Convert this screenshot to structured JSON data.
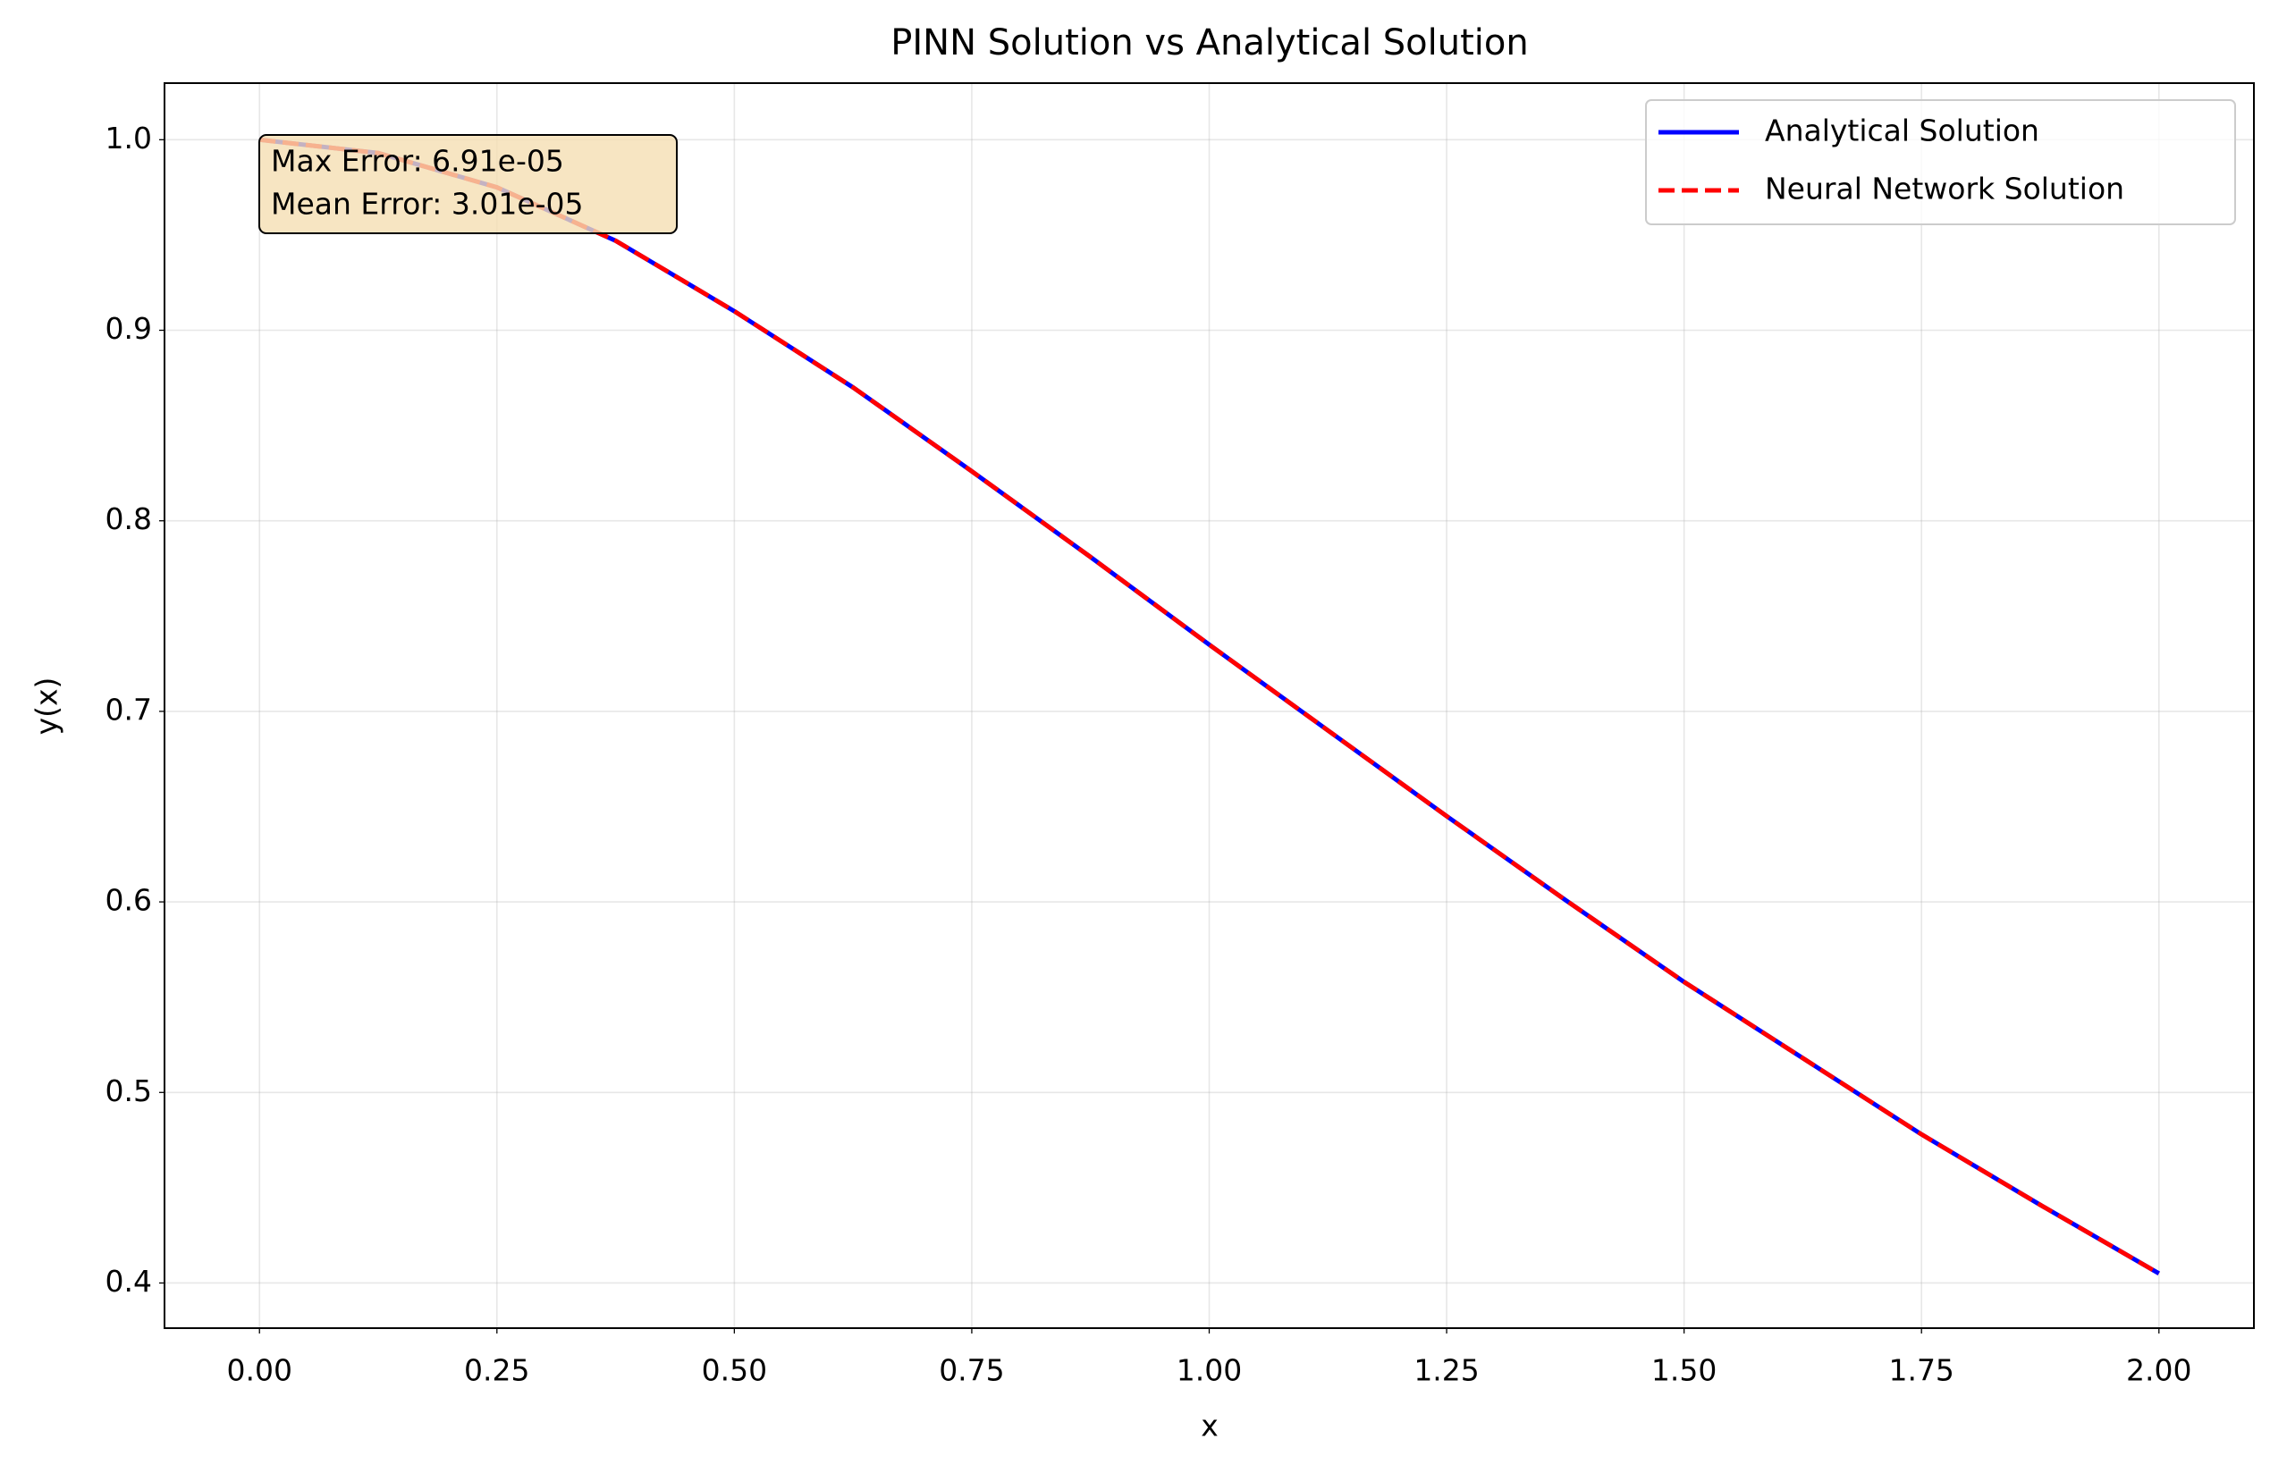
{
  "chart_data": {
    "type": "line",
    "title": "PINN Solution vs Analytical Solution",
    "x_label": "x",
    "y_label": "y(x)",
    "x": [
      0,
      0.125,
      0.25,
      0.375,
      0.5,
      0.625,
      0.75,
      0.875,
      1.0,
      1.125,
      1.25,
      1.375,
      1.5,
      1.625,
      1.75,
      1.875,
      2.0
    ],
    "series": [
      {
        "name": "Analytical Solution",
        "color": "#0000ff",
        "style": "solid",
        "values": [
          1.0,
          0.993,
          0.975,
          0.947,
          0.91,
          0.87,
          0.826,
          0.781,
          0.735,
          0.69,
          0.645,
          0.601,
          0.558,
          0.518,
          0.478,
          0.441,
          0.405
        ]
      },
      {
        "name": "Neural Network Solution",
        "color": "#ff0000",
        "style": "dashed",
        "values": [
          1.0,
          0.993,
          0.975,
          0.947,
          0.91,
          0.87,
          0.826,
          0.781,
          0.735,
          0.69,
          0.645,
          0.601,
          0.558,
          0.518,
          0.478,
          0.441,
          0.405
        ]
      }
    ],
    "xlim": [
      -0.1,
      2.1
    ],
    "ylim": [
      0.3763,
      1.0297
    ],
    "xticks": [
      {
        "value": 0,
        "label": "0.00"
      },
      {
        "value": 0.25,
        "label": "0.25"
      },
      {
        "value": 0.5,
        "label": "0.50"
      },
      {
        "value": 0.75,
        "label": "0.75"
      },
      {
        "value": 1,
        "label": "1.00"
      },
      {
        "value": 1.25,
        "label": "1.25"
      },
      {
        "value": 1.5,
        "label": "1.50"
      },
      {
        "value": 1.75,
        "label": "1.75"
      },
      {
        "value": 2,
        "label": "2.00"
      }
    ],
    "yticks": [
      0.4,
      0.5,
      0.6,
      0.7,
      0.8,
      0.9,
      {
        "value": 1,
        "label": "1.0"
      }
    ],
    "grid": true,
    "legend": "upper right",
    "annotation": [
      "Max Error: 6.91e-05",
      "Mean Error: 3.01e-05"
    ]
  }
}
